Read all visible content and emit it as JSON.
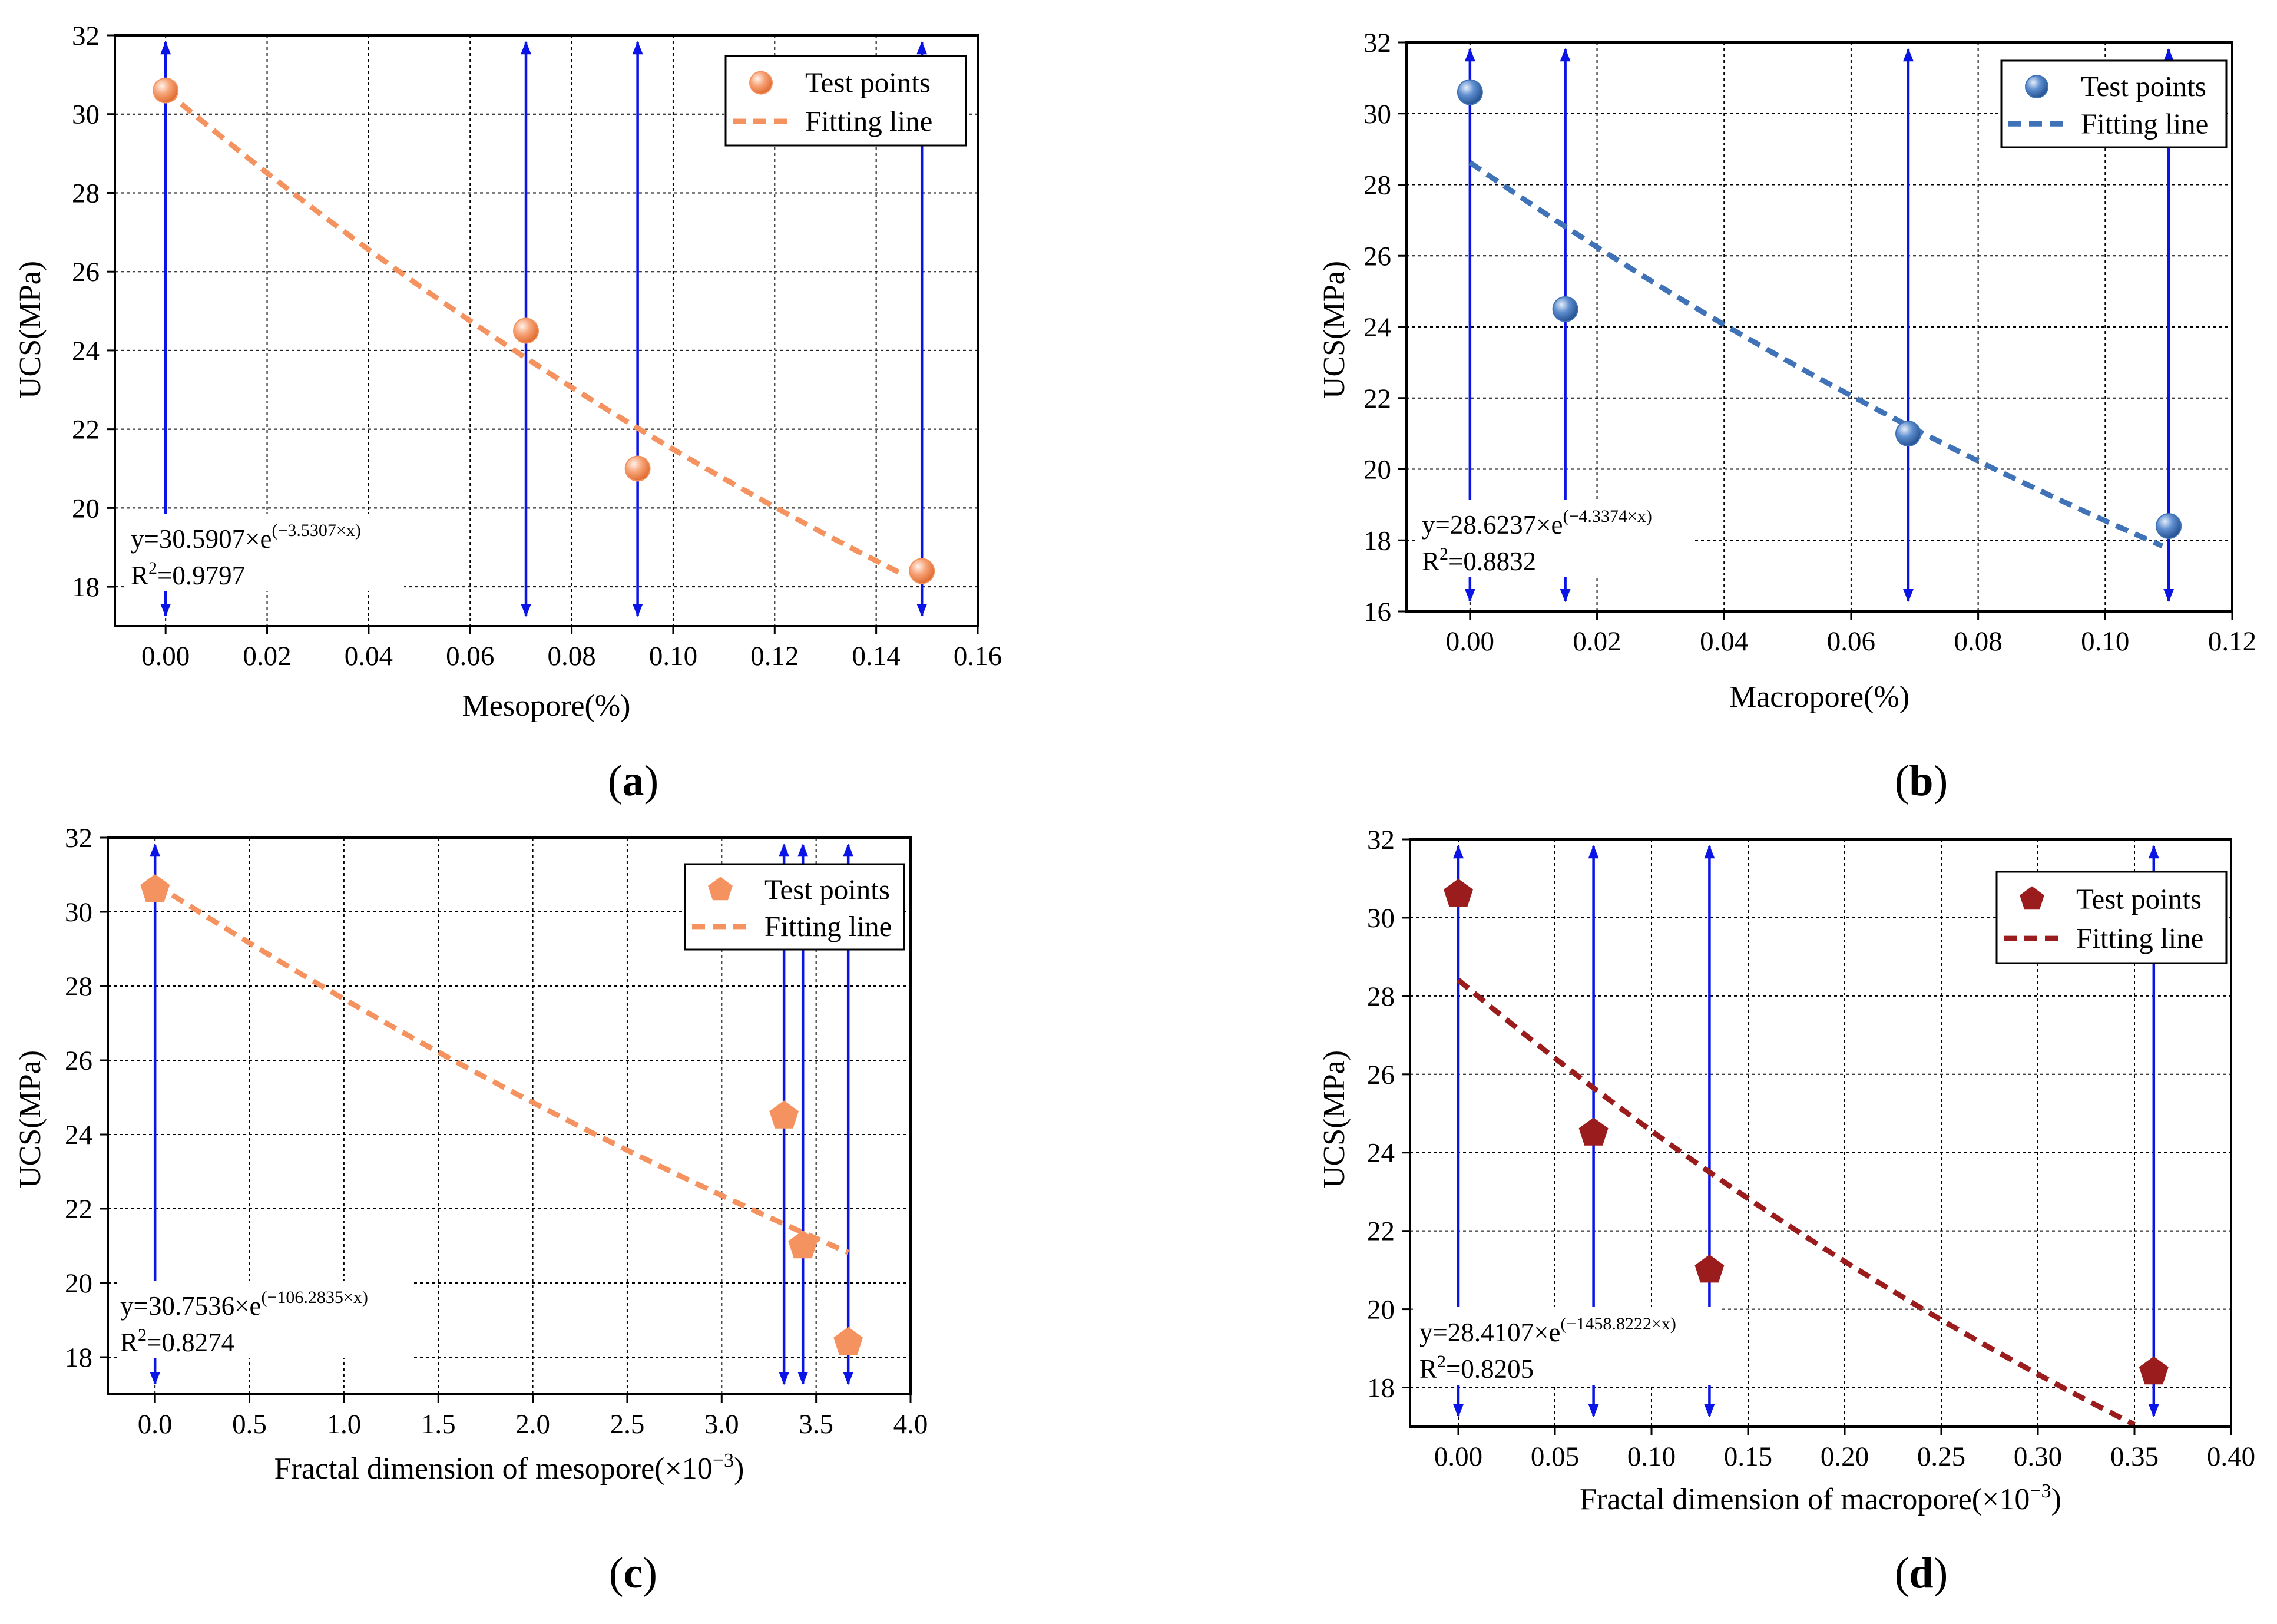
{
  "chart_data": [
    {
      "type": "scatter",
      "panel": "(a)",
      "panel_letter": "a",
      "xlabel": "Mesopore(%)",
      "ylabel": "UCS(MPa)",
      "xlim": [
        -0.01,
        0.16
      ],
      "ylim": [
        17,
        32
      ],
      "xticks": [
        0.0,
        0.02,
        0.04,
        0.06,
        0.08,
        0.1,
        0.12,
        0.14,
        0.16
      ],
      "xtick_labels": [
        "0.00",
        "0.02",
        "0.04",
        "0.06",
        "0.08",
        "0.10",
        "0.12",
        "0.14",
        "0.16"
      ],
      "yticks": [
        18,
        20,
        22,
        24,
        26,
        28,
        30,
        32
      ],
      "ytick_labels": [
        "18",
        "20",
        "22",
        "24",
        "26",
        "28",
        "30",
        "32"
      ],
      "marker": "circle",
      "color": "#f4935f",
      "line_color": "#f4935f",
      "points": {
        "x": [
          0.0,
          0.071,
          0.093,
          0.149
        ],
        "y": [
          30.6,
          24.5,
          21.0,
          18.4
        ]
      },
      "vlines": [
        0.0,
        0.071,
        0.093,
        0.149
      ],
      "fit": {
        "a": 30.5907,
        "b": -3.5307,
        "x_range": [
          0.0,
          0.145
        ]
      },
      "equation": "y=30.5907×e",
      "equation_exp": "(−3.5307×x)",
      "r2_prefix": "R",
      "r2_exp": "2",
      "r2_value": "=0.9797",
      "legend": {
        "points_label": "Test points",
        "line_label": "Fitting line"
      }
    },
    {
      "type": "scatter",
      "panel": "(b)",
      "panel_letter": "b",
      "xlabel": "Macropore(%)",
      "ylabel": "UCS(MPa)",
      "xlim": [
        -0.01,
        0.12
      ],
      "ylim": [
        16,
        32
      ],
      "xticks": [
        0.0,
        0.02,
        0.04,
        0.06,
        0.08,
        0.1,
        0.12
      ],
      "xtick_labels": [
        "0.00",
        "0.02",
        "0.04",
        "0.06",
        "0.08",
        "0.10",
        "0.12"
      ],
      "yticks": [
        16,
        18,
        20,
        22,
        24,
        26,
        28,
        30,
        32
      ],
      "ytick_labels": [
        "16",
        "18",
        "20",
        "22",
        "24",
        "26",
        "28",
        "30",
        "32"
      ],
      "marker": "circle",
      "color": "#3f72b6",
      "line_color": "#3f72b6",
      "points": {
        "x": [
          0.0,
          0.015,
          0.069,
          0.11
        ],
        "y": [
          30.6,
          24.5,
          21.0,
          18.4
        ]
      },
      "vlines": [
        0.0,
        0.015,
        0.069,
        0.11
      ],
      "fit": {
        "a": 28.6237,
        "b": -4.3374,
        "x_range": [
          0.0,
          0.109
        ]
      },
      "equation": "y=28.6237×e",
      "equation_exp": "(−4.3374×x)",
      "r2_prefix": "R",
      "r2_exp": "2",
      "r2_value": "=0.8832",
      "legend": {
        "points_label": "Test points",
        "line_label": "Fitting line"
      }
    },
    {
      "type": "scatter",
      "panel": "(c)",
      "panel_letter": "c",
      "xlabel": "Fractal dimension of mesopore(×10",
      "xlabel_exp": "−3",
      "xlabel_end": ")",
      "ylabel": "UCS(MPa)",
      "xlim": [
        -0.25,
        4.0
      ],
      "ylim": [
        17,
        32
      ],
      "xticks": [
        0.0,
        0.5,
        1.0,
        1.5,
        2.0,
        2.5,
        3.0,
        3.5,
        4.0
      ],
      "xtick_labels": [
        "0.0",
        "0.5",
        "1.0",
        "1.5",
        "2.0",
        "2.5",
        "3.0",
        "3.5",
        "4.0"
      ],
      "yticks": [
        18,
        20,
        22,
        24,
        26,
        28,
        30,
        32
      ],
      "ytick_labels": [
        "18",
        "20",
        "22",
        "24",
        "26",
        "28",
        "30",
        "32"
      ],
      "marker": "pentagon",
      "color": "#f4935f",
      "line_color": "#f4935f",
      "points": {
        "x": [
          0.0,
          3.33,
          3.43,
          3.67
        ],
        "y": [
          30.6,
          24.5,
          21.0,
          18.4
        ]
      },
      "vlines": [
        0.0,
        3.33,
        3.43,
        3.67
      ],
      "fit": {
        "a": 30.7536,
        "b": -106.2835,
        "scale": 0.001,
        "x_range": [
          0.0,
          3.67
        ]
      },
      "equation": "y=30.7536×e",
      "equation_exp": "(−106.2835×x)",
      "r2_prefix": "R",
      "r2_exp": "2",
      "r2_value": "=0.8274",
      "legend": {
        "points_label": "Test points",
        "line_label": "Fitting line"
      }
    },
    {
      "type": "scatter",
      "panel": "(d)",
      "panel_letter": "d",
      "xlabel": "Fractal dimension of macropore(×10",
      "xlabel_exp": "−3",
      "xlabel_end": ")",
      "ylabel": "UCS(MPa)",
      "xlim": [
        -0.025,
        0.4
      ],
      "ylim": [
        17,
        32
      ],
      "xticks": [
        0.0,
        0.05,
        0.1,
        0.15,
        0.2,
        0.25,
        0.3,
        0.35,
        0.4
      ],
      "xtick_labels": [
        "0.00",
        "0.05",
        "0.10",
        "0.15",
        "0.20",
        "0.25",
        "0.30",
        "0.35",
        "0.40"
      ],
      "yticks": [
        18,
        20,
        22,
        24,
        26,
        28,
        30,
        32
      ],
      "ytick_labels": [
        "18",
        "20",
        "22",
        "24",
        "26",
        "28",
        "30",
        "32"
      ],
      "marker": "pentagon",
      "color": "#9b1c1c",
      "line_color": "#9b1c1c",
      "points": {
        "x": [
          0.0,
          0.07,
          0.13,
          0.36
        ],
        "y": [
          30.6,
          24.5,
          21.0,
          18.4
        ]
      },
      "vlines": [
        0.0,
        0.07,
        0.13,
        0.36
      ],
      "fit": {
        "a": 28.4107,
        "b": -1458.8222,
        "scale": 0.001,
        "x_range": [
          0.0,
          0.35
        ]
      },
      "equation": "y=28.4107×e",
      "equation_exp": "(−1458.8222×x)",
      "r2_prefix": "R",
      "r2_exp": "2",
      "r2_value": "=0.8205",
      "legend": {
        "points_label": "Test points",
        "line_label": "Fitting line"
      }
    }
  ]
}
